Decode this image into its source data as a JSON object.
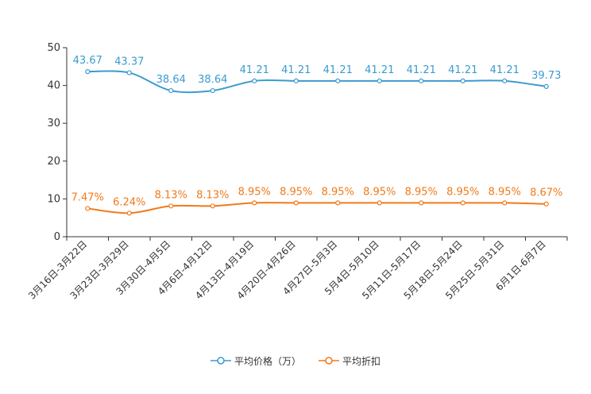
{
  "chart_data": {
    "type": "line",
    "categories": [
      "3月16日-3月22日",
      "3月23日-3月29日",
      "3月30日-4月5日",
      "4月6日-4月12日",
      "4月13日-4月19日",
      "4月20日-4月26日",
      "4月27日-5月3日",
      "5月4日-5月10日",
      "5月11日-5月17日",
      "5月18日-5月24日",
      "5月25日-5月31日",
      "6月1日-6月7日"
    ],
    "series": [
      {
        "name": "平均价格（万）",
        "color": "#3a9bd0",
        "values": [
          43.67,
          43.37,
          38.64,
          38.64,
          41.21,
          41.21,
          41.21,
          41.21,
          41.21,
          41.21,
          41.21,
          39.73
        ],
        "labels": [
          "43.67",
          "43.37",
          "38.64",
          "38.64",
          "41.21",
          "41.21",
          "41.21",
          "41.21",
          "41.21",
          "41.21",
          "41.21",
          "39.73"
        ]
      },
      {
        "name": "平均折扣",
        "color": "#f07a1a",
        "values": [
          7.47,
          6.24,
          8.13,
          8.13,
          8.95,
          8.95,
          8.95,
          8.95,
          8.95,
          8.95,
          8.95,
          8.67
        ],
        "labels": [
          "7.47%",
          "6.24%",
          "8.13%",
          "8.13%",
          "8.95%",
          "8.95%",
          "8.95%",
          "8.95%",
          "8.95%",
          "8.95%",
          "8.95%",
          "8.67%"
        ]
      }
    ],
    "ylim": [
      0,
      50
    ],
    "yticks": [
      0,
      10,
      20,
      30,
      40,
      50
    ],
    "legend_position": "bottom-center",
    "grid": false
  },
  "legend": {
    "items": [
      {
        "label": "平均价格（万）",
        "color": "#3a9bd0"
      },
      {
        "label": "平均折扣",
        "color": "#f07a1a"
      }
    ]
  }
}
